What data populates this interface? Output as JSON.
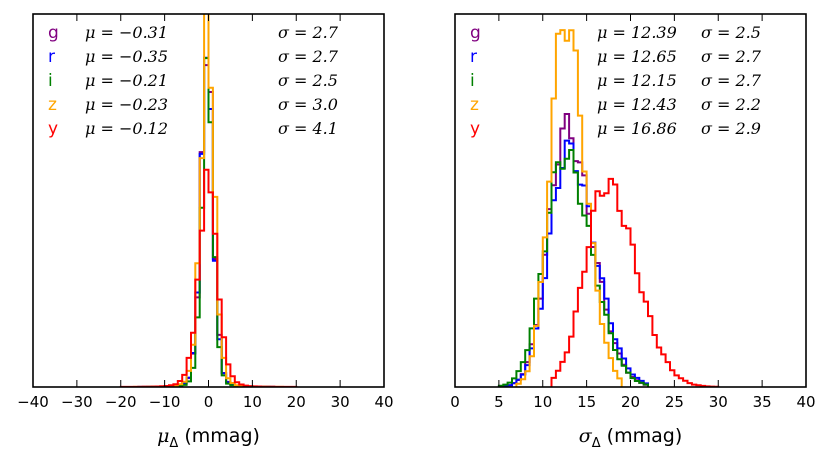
{
  "chart_data": [
    {
      "type": "histogram",
      "id": "mu",
      "title": "",
      "xlabel": "μ_Δ (mmag)",
      "xlabel_parts": {
        "symbol": "μ",
        "subscript": "Δ",
        "unit": " (mmag)"
      },
      "ylabel": "",
      "xlim": [
        -40,
        40
      ],
      "ylim": [
        0,
        1.0
      ],
      "x_ticks": [
        -40,
        -30,
        -20,
        -10,
        0,
        10,
        20,
        30,
        40
      ],
      "x_tick_labels": [
        "−40",
        "−30",
        "−20",
        "−10",
        "0",
        "10",
        "20",
        "30",
        "40"
      ],
      "bin_width": 1,
      "legend": [
        {
          "band": "g",
          "color": "#800080",
          "mu_text": "μ = −0.31",
          "sigma_text": "σ = 2.7"
        },
        {
          "band": "r",
          "color": "#0000ff",
          "mu_text": "μ = −0.35",
          "sigma_text": "σ = 2.7"
        },
        {
          "band": "i",
          "color": "#008000",
          "mu_text": "μ = −0.21",
          "sigma_text": "σ = 2.5"
        },
        {
          "band": "z",
          "color": "#ffa500",
          "mu_text": "μ = −0.23",
          "sigma_text": "σ = 3.0"
        },
        {
          "band": "y",
          "color": "#ff0000",
          "mu_text": "μ = −0.12",
          "sigma_text": "σ = 4.1"
        }
      ],
      "series": [
        {
          "name": "g",
          "color": "#800080",
          "shape": "peaked",
          "center": -0.31,
          "sigma": 2.7,
          "peak": 0.94,
          "range": [
            -20,
            20
          ]
        },
        {
          "name": "r",
          "color": "#0000ff",
          "shape": "peaked",
          "center": -0.35,
          "sigma": 2.7,
          "peak": 0.93,
          "range": [
            -20,
            20
          ]
        },
        {
          "name": "i",
          "color": "#008000",
          "shape": "peaked",
          "center": -0.21,
          "sigma": 2.5,
          "peak": 0.9,
          "range": [
            -20,
            20
          ]
        },
        {
          "name": "z",
          "color": "#ffa500",
          "shape": "peaked",
          "center": -0.23,
          "sigma": 3.0,
          "peak": 1.0,
          "range": [
            -20,
            20
          ]
        },
        {
          "name": "y",
          "color": "#ff0000",
          "shape": "peaked",
          "center": -0.12,
          "sigma": 4.1,
          "peak": 0.58,
          "range": [
            -20,
            20
          ]
        }
      ]
    },
    {
      "type": "histogram",
      "id": "sigma",
      "title": "",
      "xlabel": "σ_Δ (mmag)",
      "xlabel_parts": {
        "symbol": "σ",
        "subscript": "Δ",
        "unit": " (mmag)"
      },
      "ylabel": "",
      "xlim": [
        0,
        40
      ],
      "ylim": [
        0,
        1.0
      ],
      "x_ticks": [
        0,
        5,
        10,
        15,
        20,
        25,
        30,
        35,
        40
      ],
      "x_tick_labels": [
        "0",
        "5",
        "10",
        "15",
        "20",
        "25",
        "30",
        "35",
        "40"
      ],
      "bin_width": 0.5,
      "legend": [
        {
          "band": "g",
          "color": "#800080",
          "mu_text": "μ = 12.39",
          "sigma_text": "σ = 2.5"
        },
        {
          "band": "r",
          "color": "#0000ff",
          "mu_text": "μ = 12.65",
          "sigma_text": "σ = 2.7"
        },
        {
          "band": "i",
          "color": "#008000",
          "mu_text": "μ = 12.15",
          "sigma_text": "σ = 2.7"
        },
        {
          "band": "z",
          "color": "#ffa500",
          "mu_text": "μ = 12.43",
          "sigma_text": "σ = 2.2"
        },
        {
          "band": "y",
          "color": "#ff0000",
          "mu_text": "μ = 16.86",
          "sigma_text": "σ = 2.9"
        }
      ],
      "series": [
        {
          "name": "g",
          "color": "#800080",
          "shape": "skewed",
          "center": 12.6,
          "sigma_left": 2.0,
          "sigma_right": 3.0,
          "peak": 0.7,
          "range": [
            5,
            22
          ]
        },
        {
          "name": "r",
          "color": "#0000ff",
          "shape": "skewed",
          "center": 12.8,
          "sigma_left": 2.1,
          "sigma_right": 3.1,
          "peak": 0.64,
          "range": [
            5,
            22
          ]
        },
        {
          "name": "i",
          "color": "#008000",
          "shape": "skewed",
          "center": 12.4,
          "sigma_left": 2.2,
          "sigma_right": 3.1,
          "peak": 0.63,
          "range": [
            5,
            22
          ]
        },
        {
          "name": "z",
          "color": "#ffa500",
          "shape": "skewed",
          "center": 12.5,
          "sigma_left": 1.7,
          "sigma_right": 2.3,
          "peak": 1.0,
          "range": [
            7,
            19
          ]
        },
        {
          "name": "y",
          "color": "#ff0000",
          "shape": "skewed",
          "center": 17.2,
          "sigma_left": 2.4,
          "sigma_right": 3.4,
          "peak": 0.55,
          "range": [
            11,
            30
          ]
        }
      ]
    }
  ]
}
